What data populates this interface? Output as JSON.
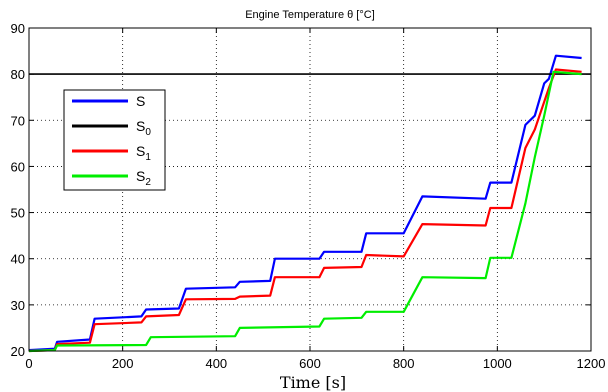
{
  "chart_data": {
    "type": "line",
    "title": "Engine Temperature θ [°C]",
    "xlabel": "Time [s]",
    "ylabel": "",
    "xlim": [
      0,
      1200
    ],
    "ylim": [
      20,
      90
    ],
    "xticks": [
      0,
      200,
      400,
      600,
      800,
      1000,
      1200
    ],
    "yticks": [
      20,
      30,
      40,
      50,
      60,
      70,
      80,
      90
    ],
    "grid": "dotted",
    "legend_position": "upper-left",
    "series": [
      {
        "name": "S",
        "sub": "",
        "color": "#0000ff",
        "x": [
          0,
          55,
          60,
          130,
          140,
          240,
          250,
          320,
          335,
          440,
          450,
          515,
          525,
          620,
          630,
          710,
          720,
          800,
          840,
          975,
          985,
          1030,
          1060,
          1080,
          1100,
          1110,
          1125,
          1180
        ],
        "y": [
          20.2,
          20.5,
          22,
          22.5,
          27,
          27.5,
          29,
          29.2,
          33.5,
          33.8,
          35,
          35.2,
          40,
          40,
          41.5,
          41.5,
          45.5,
          45.5,
          53.5,
          53,
          56.5,
          56.5,
          69,
          71,
          78,
          79,
          84,
          83.5
        ]
      },
      {
        "name": "S",
        "sub": "0",
        "color": "#000000",
        "x": [
          0,
          1200
        ],
        "y": [
          80,
          80
        ]
      },
      {
        "name": "S",
        "sub": "1",
        "color": "#ff0000",
        "x": [
          0,
          55,
          60,
          130,
          140,
          240,
          250,
          320,
          335,
          440,
          450,
          515,
          525,
          620,
          630,
          710,
          720,
          800,
          840,
          975,
          985,
          1030,
          1060,
          1080,
          1100,
          1110,
          1125,
          1180
        ],
        "y": [
          20,
          20.2,
          21.5,
          21.8,
          25.8,
          26.2,
          27.5,
          27.8,
          31.2,
          31.3,
          31.8,
          32,
          36,
          36,
          38,
          38.2,
          40.8,
          40.5,
          47.5,
          47.2,
          51,
          51,
          64,
          68,
          74,
          77,
          81,
          80.5
        ]
      },
      {
        "name": "S",
        "sub": "2",
        "color": "#00ee00",
        "x": [
          0,
          55,
          60,
          250,
          260,
          440,
          450,
          620,
          630,
          710,
          720,
          800,
          840,
          975,
          985,
          1030,
          1060,
          1080,
          1100,
          1120,
          1180
        ],
        "y": [
          20,
          20.2,
          21.2,
          21.3,
          23,
          23.2,
          25,
          25.3,
          27,
          27.2,
          28.5,
          28.5,
          36,
          35.8,
          40.2,
          40.2,
          52,
          62,
          71,
          80.5,
          80
        ]
      }
    ]
  }
}
